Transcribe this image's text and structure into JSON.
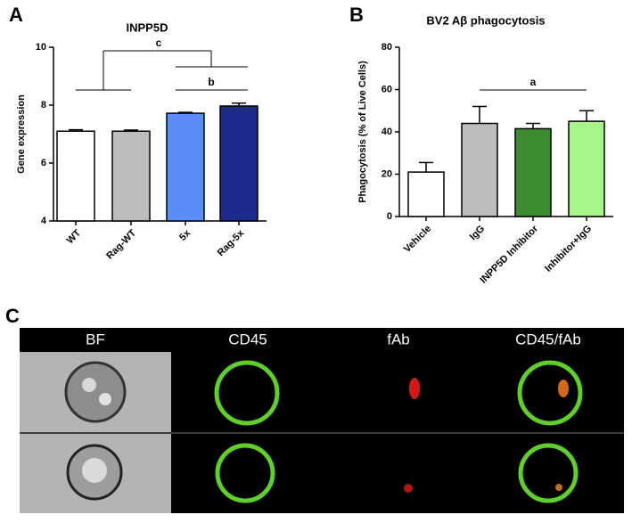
{
  "chart_data": [
    {
      "type": "bar",
      "panel": "A",
      "title": "INPP5D",
      "y_label": "Gene expression",
      "categories": [
        "WT",
        "Rag-WT",
        "5x",
        "Rag-5x"
      ],
      "values": [
        7.1,
        7.1,
        7.72,
        7.97
      ],
      "errors": [
        0.05,
        0.04,
        0.03,
        0.1
      ],
      "colors": [
        "#ffffff",
        "#bdbdbd",
        "#5b8df6",
        "#1c2a8e"
      ],
      "ylim": [
        4,
        10
      ],
      "yticks": [
        4,
        6,
        8,
        10
      ],
      "annotations": [
        "c",
        "b"
      ]
    },
    {
      "type": "bar",
      "panel": "B",
      "title": "BV2 Aβ phagocytosis",
      "y_label": "Phagocytosis (% of Live Cells)",
      "categories": [
        "Vehicle",
        "IgG",
        "INPP5D Inhibitor",
        "Inhibitor+IgG"
      ],
      "values": [
        21,
        44,
        41.5,
        45
      ],
      "errors": [
        4.5,
        8,
        2.5,
        5
      ],
      "colors": [
        "#ffffff",
        "#bdbdbd",
        "#3e8c30",
        "#a8f58c"
      ],
      "ylim": [
        0,
        80
      ],
      "yticks": [
        0,
        20,
        40,
        60,
        80
      ],
      "annotations": [
        "a"
      ]
    }
  ],
  "imaging": {
    "panel": "C",
    "columns": [
      "BF",
      "CD45",
      "fAb",
      "CD45/fAb"
    ]
  }
}
